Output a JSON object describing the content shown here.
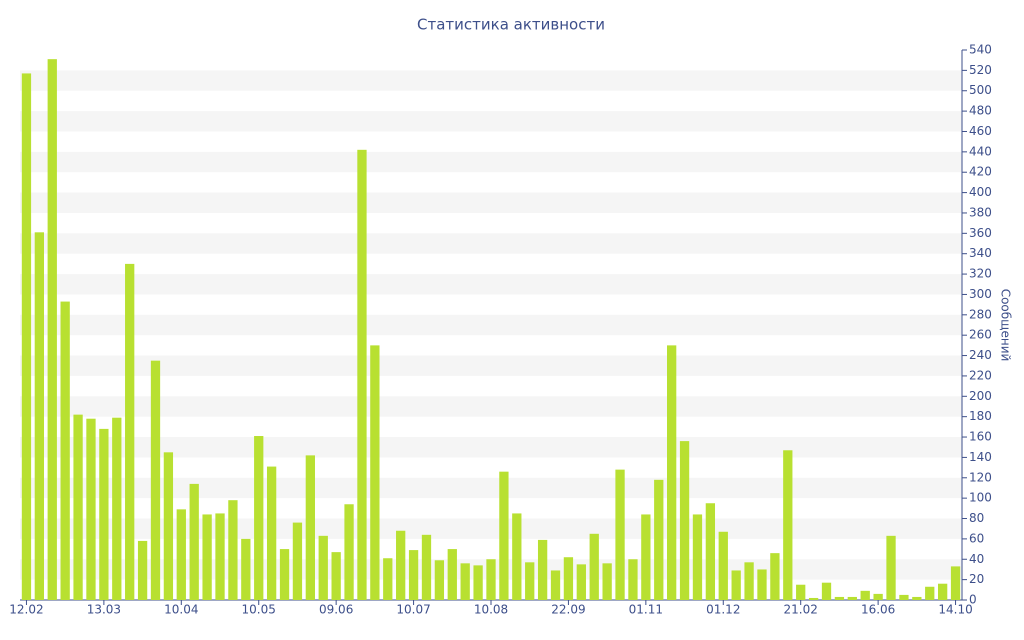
{
  "chart_data": {
    "type": "bar",
    "title": "Статистика активности",
    "y_label": "Сообщений",
    "color": "#b8e031",
    "categories": [
      "12.02",
      null,
      null,
      null,
      null,
      null,
      "13.03",
      null,
      null,
      null,
      null,
      null,
      "10.04",
      null,
      null,
      null,
      null,
      null,
      "10.05",
      null,
      null,
      null,
      null,
      null,
      "09.06",
      null,
      null,
      null,
      null,
      null,
      "10.07",
      null,
      null,
      null,
      null,
      null,
      "10.08",
      null,
      null,
      null,
      null,
      null,
      "22.09",
      null,
      null,
      null,
      null,
      null,
      "01.11",
      null,
      null,
      null,
      null,
      null,
      "01.12",
      null,
      null,
      null,
      null,
      null,
      "21.02",
      null,
      null,
      null,
      null,
      null,
      "16.06",
      null,
      null,
      null,
      null,
      null,
      "14.10"
    ],
    "values": [
      517,
      361,
      531,
      293,
      182,
      178,
      168,
      179,
      330,
      58,
      235,
      145,
      89,
      114,
      84,
      85,
      98,
      60,
      161,
      131,
      50,
      76,
      142,
      63,
      47,
      94,
      442,
      250,
      41,
      68,
      49,
      64,
      39,
      50,
      36,
      34,
      40,
      126,
      85,
      37,
      59,
      29,
      42,
      35,
      65,
      36,
      128,
      40,
      84,
      118,
      250,
      156,
      84,
      95,
      67,
      29,
      37,
      30,
      46,
      147,
      15,
      2,
      17,
      3,
      3,
      9,
      6,
      63,
      5,
      3,
      13,
      16,
      33
    ],
    "ylim": [
      0,
      540
    ],
    "yticks": [
      0,
      20,
      40,
      60,
      80,
      100,
      120,
      140,
      160,
      180,
      200,
      220,
      240,
      260,
      280,
      300,
      320,
      340,
      360,
      380,
      400,
      420,
      440,
      460,
      480,
      500,
      520,
      540
    ],
    "y_axis_side": "right",
    "grid": "bands"
  }
}
